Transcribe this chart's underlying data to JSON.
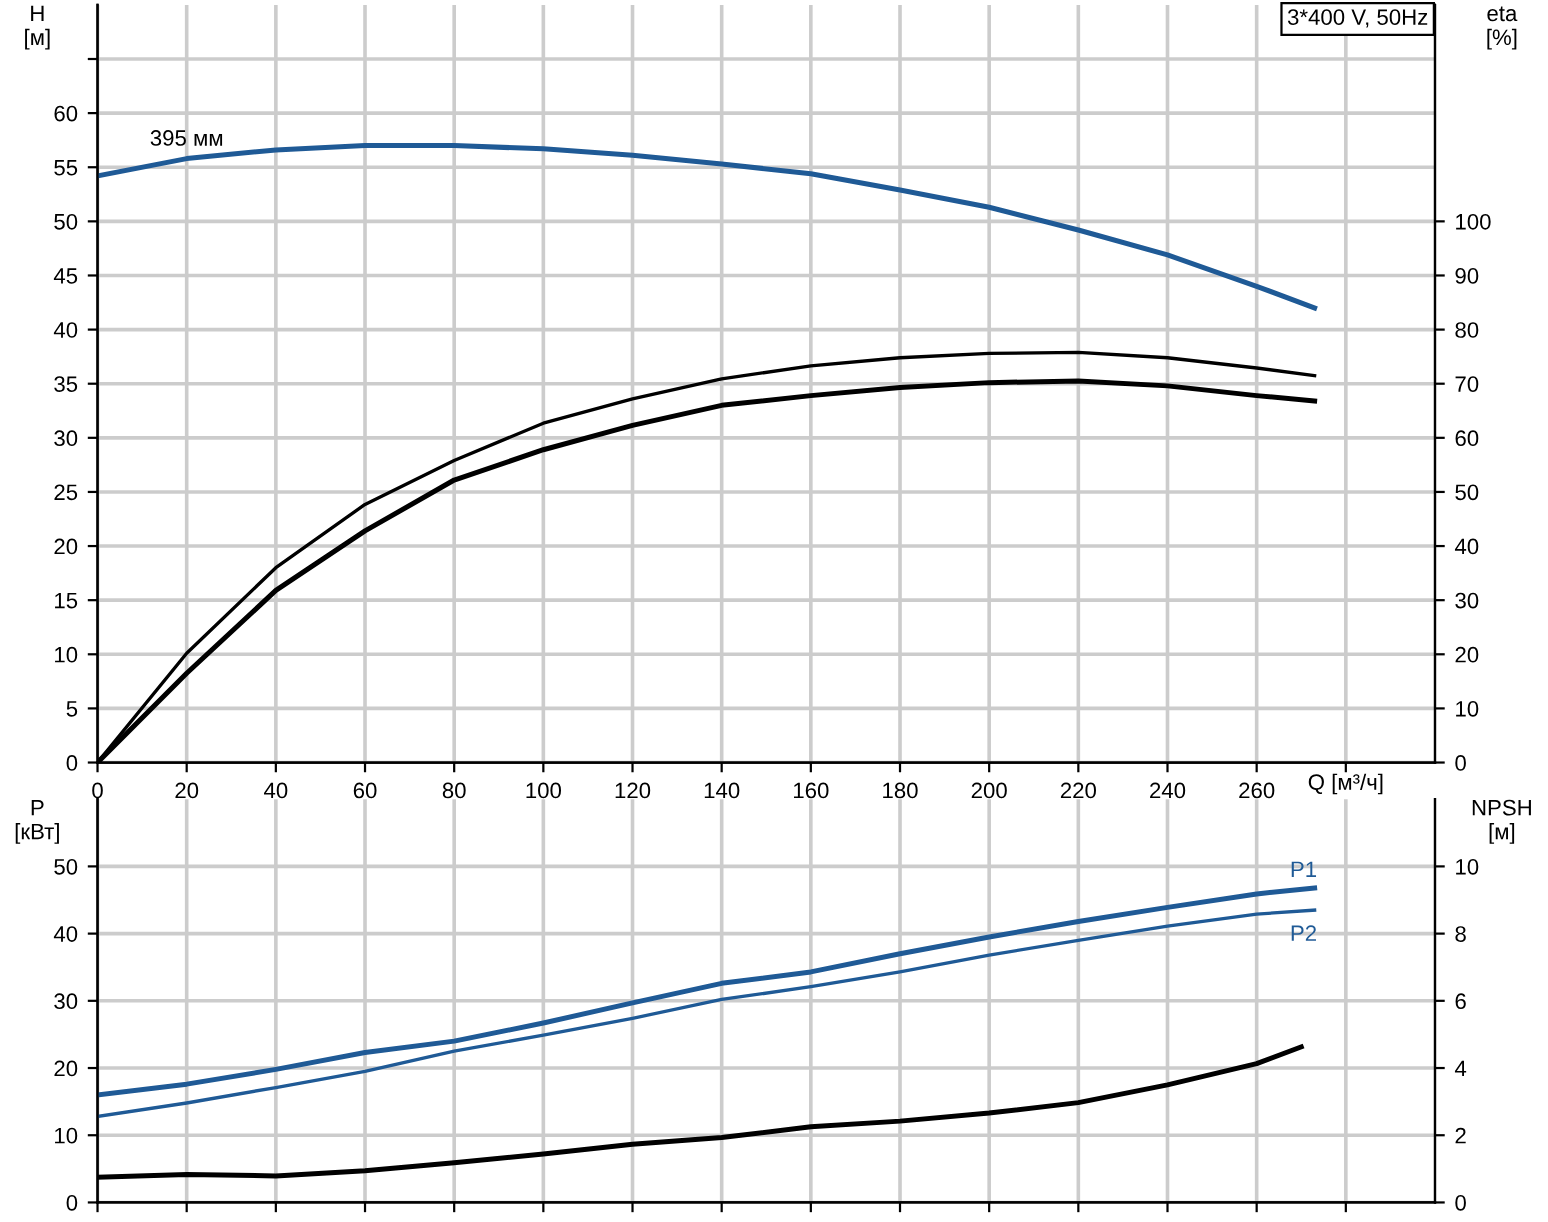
{
  "chart_data": [
    {
      "type": "line",
      "title": "3*400 V, 50Hz",
      "xlabel": "Q [м³/ч]",
      "ylabel": "H\n[м]",
      "y2label": "eta\n[%]",
      "xlim": [
        0,
        300
      ],
      "xticks": [
        0,
        20,
        40,
        60,
        80,
        100,
        120,
        140,
        160,
        180,
        200,
        220,
        240,
        260,
        {
          "value": 280,
          "label": null
        }
      ],
      "ylim": [
        0,
        70
      ],
      "yticks": [
        0,
        5,
        10,
        15,
        20,
        25,
        30,
        35,
        40,
        45,
        50,
        55,
        60,
        {
          "value": 65,
          "label": null
        }
      ],
      "y2lim": [
        0,
        140
      ],
      "y2ticks": [
        0,
        10,
        20,
        30,
        40,
        50,
        60,
        70,
        80,
        90,
        100
      ],
      "grid": true,
      "line_style": "solid",
      "marker": "none",
      "annotations": [
        {
          "text": "395 мм",
          "x": 20,
          "y": 55.8
        }
      ],
      "series": [
        {
          "color": "#1f5a96",
          "x": [
            0,
            20,
            40,
            60,
            80,
            100,
            120,
            140,
            160,
            180,
            200,
            220,
            240,
            260,
            273
          ],
          "values": [
            54.2,
            55.8,
            56.6,
            57.0,
            57.0,
            56.7,
            56.1,
            55.3,
            54.4,
            52.9,
            51.3,
            49.2,
            46.9,
            44.0,
            42.0
          ]
        },
        {
          "color": "#000000",
          "axis": "y2",
          "x": [
            0,
            20,
            40,
            60,
            80,
            100,
            120,
            140,
            160,
            180,
            200,
            220,
            240,
            260,
            273
          ],
          "values": [
            0,
            20.2,
            36.0,
            47.7,
            55.8,
            62.7,
            67.2,
            70.9,
            73.3,
            74.8,
            75.6,
            75.8,
            74.8,
            72.9,
            71.5
          ]
        },
        {
          "color": "#000000",
          "axis": "y2",
          "x": [
            0,
            20,
            40,
            60,
            80,
            100,
            120,
            140,
            160,
            180,
            200,
            220,
            240,
            260,
            273
          ],
          "values": [
            0,
            16.5,
            31.8,
            42.8,
            52.2,
            57.8,
            62.3,
            66.0,
            67.8,
            69.3,
            70.2,
            70.5,
            69.6,
            67.8,
            66.8
          ]
        }
      ]
    },
    {
      "type": "line",
      "ylabel": "P\n[кВт]",
      "y2label": "NPSH\n[м]",
      "xlim": [
        0,
        300
      ],
      "xticks": [
        0,
        20,
        40,
        60,
        80,
        100,
        120,
        140,
        160,
        180,
        200,
        220,
        240,
        260,
        {
          "value": 280,
          "label": null
        }
      ],
      "tick_labels": "y",
      "ylim": [
        0,
        60
      ],
      "yticks": [
        0,
        10,
        20,
        30,
        40,
        50
      ],
      "y2lim": [
        0,
        12
      ],
      "y2ticks": [
        0,
        2,
        4,
        6,
        8,
        10
      ],
      "grid": true,
      "line_style": "solid",
      "marker": "none",
      "series": [
        {
          "name": "P1",
          "color": "#1f5a96",
          "x": [
            0,
            20,
            40,
            60,
            80,
            100,
            120,
            140,
            160,
            180,
            200,
            220,
            240,
            260,
            273
          ],
          "values": [
            16.0,
            17.6,
            19.8,
            22.3,
            24.0,
            26.7,
            29.7,
            32.6,
            34.3,
            37.0,
            39.5,
            41.8,
            43.9,
            45.9,
            46.8
          ]
        },
        {
          "name": "P2",
          "color": "#1f5a96",
          "x": [
            0,
            20,
            40,
            60,
            80,
            100,
            120,
            140,
            160,
            180,
            200,
            220,
            240,
            260,
            273
          ],
          "values": [
            12.8,
            14.8,
            17.1,
            19.5,
            22.5,
            24.9,
            27.4,
            30.2,
            32.1,
            34.3,
            36.8,
            39.0,
            41.1,
            42.9,
            43.5
          ]
        },
        {
          "color": "#000000",
          "axis": "y2",
          "x": [
            0,
            20,
            40,
            60,
            80,
            100,
            120,
            140,
            160,
            180,
            200,
            220,
            240,
            260,
            270
          ],
          "values": [
            0.75,
            0.83,
            0.79,
            0.94,
            1.18,
            1.44,
            1.73,
            1.93,
            2.25,
            2.42,
            2.66,
            2.97,
            3.5,
            4.13,
            4.63
          ]
        }
      ]
    }
  ]
}
